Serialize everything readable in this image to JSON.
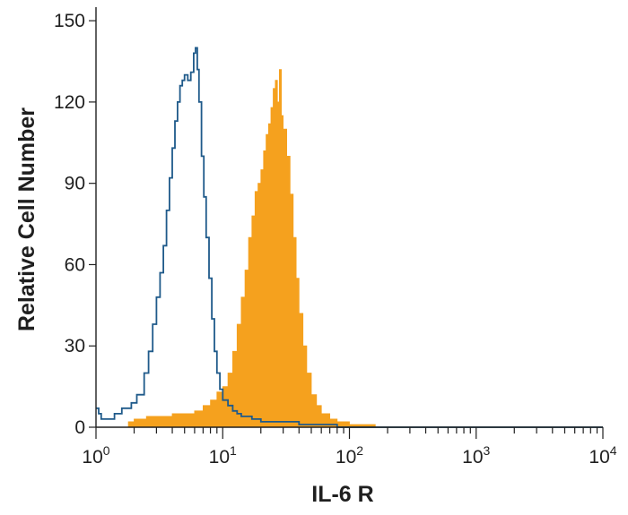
{
  "chart_data": {
    "type": "area",
    "title": "",
    "xlabel": "IL-6 R",
    "ylabel": "Relative Cell Number",
    "x_scale": "log",
    "xlim": [
      1,
      10000
    ],
    "ylim": [
      0,
      155
    ],
    "x_ticks": [
      {
        "value": 1,
        "base": "10",
        "exp": "0"
      },
      {
        "value": 10,
        "base": "10",
        "exp": "1"
      },
      {
        "value": 100,
        "base": "10",
        "exp": "2"
      },
      {
        "value": 1000,
        "base": "10",
        "exp": "3"
      },
      {
        "value": 10000,
        "base": "10",
        "exp": "4"
      }
    ],
    "y_ticks": [
      0,
      30,
      60,
      90,
      120,
      150
    ],
    "grid": false,
    "legend": "none",
    "series": [
      {
        "style": "outline",
        "color": "#1f5a8a",
        "x": [
          1.0,
          1.05,
          1.1,
          1.2,
          1.4,
          1.6,
          1.9,
          2.1,
          2.4,
          2.6,
          2.8,
          3.0,
          3.2,
          3.4,
          3.6,
          3.8,
          4.0,
          4.2,
          4.4,
          4.6,
          4.8,
          5.0,
          5.3,
          5.6,
          5.9,
          6.1,
          6.3,
          6.5,
          6.8,
          7.1,
          7.4,
          7.8,
          8.2,
          8.6,
          9.0,
          9.5,
          10.0,
          11.0,
          12.0,
          13.0,
          14.0,
          15.0,
          17.0,
          20.0,
          25.0,
          30.0,
          40.0,
          50.0,
          60.0,
          70.0,
          80.0,
          100.0,
          150.0,
          1000.0,
          10000.0
        ],
        "y": [
          7,
          5,
          3,
          3,
          5,
          7,
          9,
          12,
          20,
          28,
          38,
          48,
          57,
          67,
          80,
          92,
          103,
          113,
          120,
          126,
          128,
          130,
          128,
          131,
          138,
          140,
          132,
          120,
          100,
          85,
          70,
          55,
          40,
          28,
          20,
          14,
          10,
          8,
          6,
          5,
          4,
          4,
          3,
          2,
          2,
          2,
          1,
          1,
          1,
          1,
          0,
          0,
          0,
          0,
          0
        ]
      },
      {
        "style": "filled",
        "color": "#f5a11e",
        "x": [
          1.6,
          1.8,
          2.0,
          2.5,
          3.0,
          4.0,
          5.0,
          6.0,
          7.0,
          8.0,
          9.0,
          10.0,
          11.0,
          12.0,
          13.0,
          14.0,
          15.0,
          16.0,
          17.0,
          18.0,
          19.0,
          20.0,
          21.0,
          22.0,
          23.0,
          24.0,
          25.0,
          26.0,
          27.0,
          28.0,
          29.0,
          30.0,
          32.0,
          34.0,
          36.0,
          38.0,
          40.0,
          43.0,
          46.0,
          50.0,
          55.0,
          60.0,
          70.0,
          80.0,
          100.0,
          130.0,
          160.0
        ],
        "y": [
          0,
          2,
          3,
          4,
          4,
          5,
          5,
          6,
          8,
          10,
          13,
          15,
          20,
          28,
          38,
          48,
          58,
          70,
          78,
          87,
          90,
          95,
          102,
          108,
          112,
          118,
          125,
          128,
          120,
          132,
          115,
          110,
          100,
          86,
          70,
          55,
          42,
          30,
          20,
          12,
          8,
          5,
          3,
          2,
          1,
          1,
          0
        ]
      }
    ]
  }
}
